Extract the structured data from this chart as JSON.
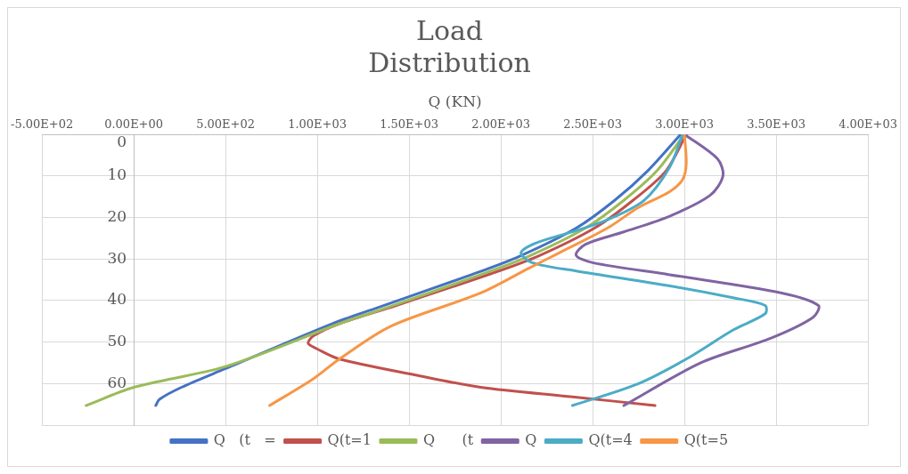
{
  "chart_data": {
    "type": "line",
    "title": "Load Distribution",
    "xlabel": "Q (KN)",
    "xlim": [
      -500,
      4000
    ],
    "xticks": [
      {
        "value": -500,
        "label": "-5.00E+02"
      },
      {
        "value": 0,
        "label": "0.00E+00"
      },
      {
        "value": 500,
        "label": "5.00E+02"
      },
      {
        "value": 1000,
        "label": "1.00E+03"
      },
      {
        "value": 1500,
        "label": "1.50E+03"
      },
      {
        "value": 2000,
        "label": "2.00E+03"
      },
      {
        "value": 2500,
        "label": "2.50E+03"
      },
      {
        "value": 3000,
        "label": "3.00E+03"
      },
      {
        "value": 3500,
        "label": "3.50E+03"
      },
      {
        "value": 4000,
        "label": "4.00E+03"
      }
    ],
    "ylim": [
      70,
      0
    ],
    "yticks": [
      0,
      10,
      20,
      30,
      40,
      50,
      60,
      {
        "value": 70,
        "label": null
      }
    ],
    "grid": true,
    "legend": "bottom",
    "marker": "none",
    "line_style": "solid",
    "series": [
      {
        "name": "Q   (t   =",
        "color": "#4472c4",
        "x": [
          2980,
          2800,
          2620,
          2410,
          2100,
          1840,
          1330,
          1080,
          500,
          260,
          140,
          120
        ],
        "values": [
          0,
          8.8,
          15.9,
          22.6,
          29.4,
          33.8,
          41.7,
          45.6,
          56.4,
          60.9,
          63.8,
          65.3
        ]
      },
      {
        "name": "Q(t=1",
        "color": "#c0504d",
        "x": [
          3010,
          2900,
          2720,
          2510,
          2200,
          1950,
          1430,
          1120,
          980,
          950,
          1000,
          1120,
          1530,
          1890,
          2390,
          2840
        ],
        "values": [
          0,
          8.8,
          15.9,
          22.6,
          29.4,
          33.5,
          41.2,
          45.6,
          48.5,
          50.3,
          51.7,
          54.1,
          57.9,
          60.9,
          63.2,
          65.3
        ]
      },
      {
        "name": "Q      (t",
        "color": "#9bbb59",
        "x": [
          3000,
          2850,
          2670,
          2460,
          2150,
          1890,
          1380,
          1120,
          500,
          0,
          -260
        ],
        "values": [
          0,
          8.8,
          15.9,
          22.6,
          29.4,
          33.8,
          41.7,
          45.6,
          55.9,
          60.9,
          65.3
        ]
      },
      {
        "name": "Q",
        "color": "#8064a2",
        "x": [
          3000,
          3180,
          3210,
          3140,
          2920,
          2670,
          2460,
          2410,
          2500,
          2920,
          3530,
          3730,
          3700,
          3470,
          3090,
          2670
        ],
        "values": [
          0,
          5.9,
          10,
          14.7,
          19.7,
          23.5,
          26.5,
          29.1,
          30.9,
          33.8,
          38.2,
          41.2,
          44.1,
          49.1,
          55,
          65.3
        ]
      },
      {
        "name": "Q(t=4",
        "color": "#4bacc6",
        "x": [
          2990,
          2920,
          2780,
          2580,
          2410,
          2190,
          2110,
          2170,
          2410,
          2920,
          3270,
          3440,
          3440,
          3270,
          3010,
          2750,
          2390
        ],
        "values": [
          0,
          7.9,
          15.9,
          20.6,
          23.2,
          26.2,
          28.5,
          30.9,
          32.9,
          36.5,
          39.4,
          41.2,
          43.2,
          47,
          54.1,
          60,
          65.3
        ]
      },
      {
        "name": "Q(t=5",
        "color": "#f79646",
        "x": [
          3000,
          3010,
          2990,
          2920,
          2750,
          2580,
          2320,
          2150,
          1890,
          1400,
          1120,
          980,
          740
        ],
        "values": [
          0,
          7.1,
          10.9,
          13.8,
          17.6,
          22.6,
          28.5,
          32.3,
          38.2,
          46.2,
          54.1,
          58.8,
          65.3
        ]
      }
    ]
  }
}
